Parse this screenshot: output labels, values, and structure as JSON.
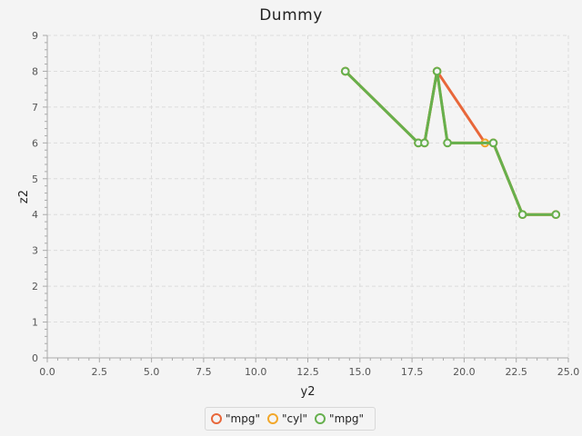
{
  "chart_data": {
    "type": "line",
    "title": "Dummy",
    "xlabel": "y2",
    "ylabel": "z2",
    "xlim": [
      0,
      25
    ],
    "ylim": [
      0,
      9
    ],
    "xticks": [
      "0.0",
      "2.5",
      "5.0",
      "7.5",
      "10.0",
      "12.5",
      "15.0",
      "17.5",
      "20.0",
      "22.5",
      "25.0"
    ],
    "yticks": [
      "0",
      "1",
      "2",
      "3",
      "4",
      "5",
      "6",
      "7",
      "8",
      "9"
    ],
    "grid": true,
    "legend_position": "bottom",
    "series": [
      {
        "name": "\"mpg\"",
        "color": "#e8673a",
        "points": [
          [
            14.3,
            8
          ],
          [
            17.8,
            6
          ],
          [
            18.1,
            6
          ],
          [
            18.7,
            8
          ],
          [
            21.0,
            6
          ],
          [
            21.4,
            6
          ],
          [
            22.8,
            4
          ],
          [
            24.4,
            4
          ]
        ]
      },
      {
        "name": "\"cyl\"",
        "color": "#f2a72a",
        "points": [
          [
            14.3,
            8
          ],
          [
            17.8,
            6
          ],
          [
            18.1,
            6
          ],
          [
            18.7,
            8
          ],
          [
            19.2,
            6
          ],
          [
            21.0,
            6
          ],
          [
            21.4,
            6
          ],
          [
            22.8,
            4
          ],
          [
            24.4,
            4
          ]
        ]
      },
      {
        "name": "\"mpg\"",
        "color": "#66b04e",
        "points": [
          [
            14.3,
            8
          ],
          [
            17.8,
            6
          ],
          [
            18.1,
            6
          ],
          [
            18.7,
            8
          ],
          [
            19.2,
            6
          ],
          [
            21.4,
            6
          ],
          [
            22.8,
            4
          ],
          [
            24.4,
            4
          ]
        ]
      }
    ]
  }
}
